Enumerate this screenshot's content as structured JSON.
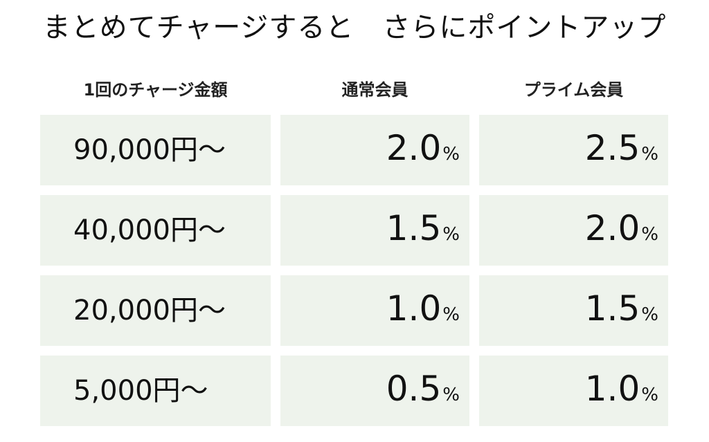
{
  "title": "まとめてチャージすると　さらにポイントアップ",
  "table": {
    "headers": {
      "amount": "1回のチャージ金額",
      "regular": "通常会員",
      "prime": "プライム会員"
    },
    "rows": [
      {
        "amount": "90,000円〜",
        "regular": "2.0",
        "prime": "2.5"
      },
      {
        "amount": "40,000円〜",
        "regular": "1.5",
        "prime": "2.0"
      },
      {
        "amount": "20,000円〜",
        "regular": "1.0",
        "prime": "1.5"
      },
      {
        "amount": "5,000円〜",
        "regular": "0.5",
        "prime": "1.0"
      }
    ],
    "unit": "%"
  },
  "colors": {
    "cell_background": "#eef3ec",
    "text": "#111111"
  }
}
